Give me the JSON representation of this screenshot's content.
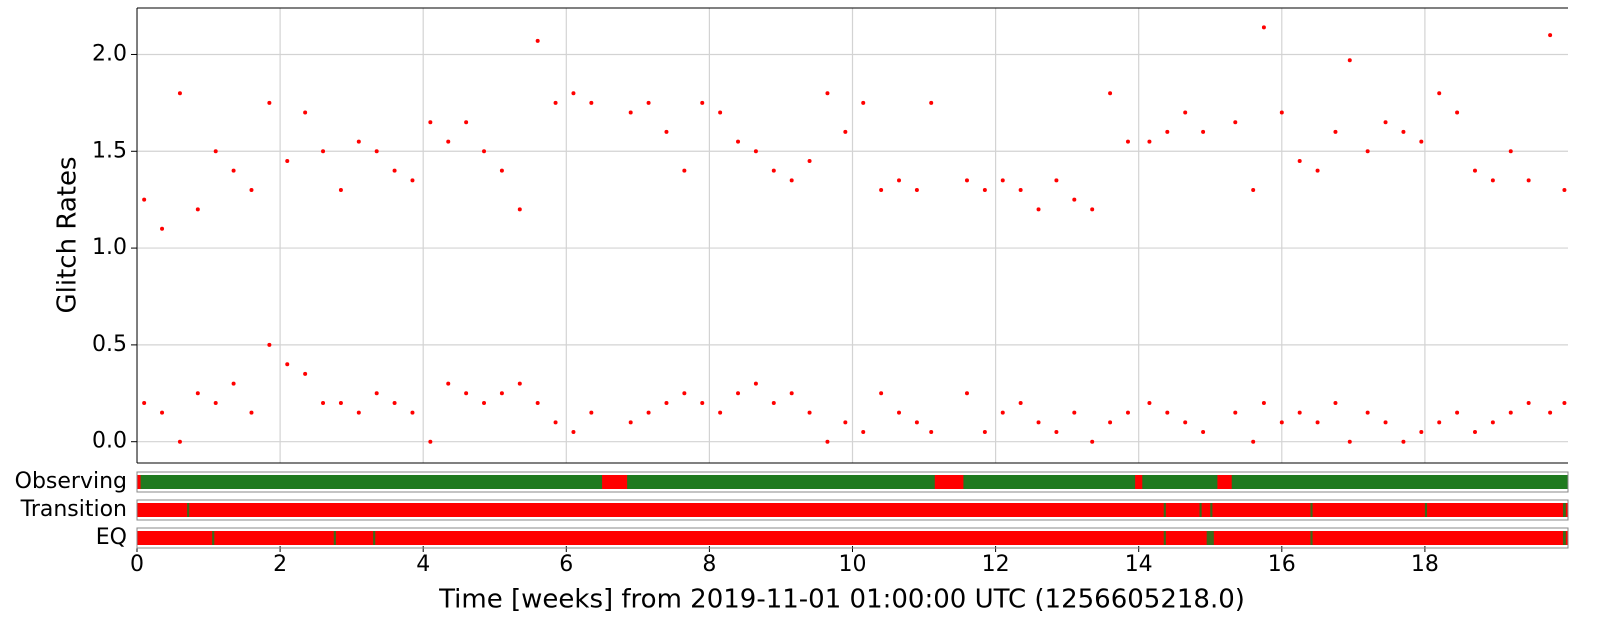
{
  "chart_data": {
    "type": "scatter",
    "ylabel": "Glitch Rates",
    "xlabel": "Time [weeks] from 2019-11-01 01:00:00 UTC (1256605218.0)",
    "color": "#ff0000",
    "grid": true,
    "xlim": [
      0,
      20
    ],
    "ylim": [
      -0.11,
      2.24
    ],
    "xticks": [
      0,
      2,
      4,
      6,
      8,
      10,
      12,
      14,
      16,
      18
    ],
    "yticks": [
      {
        "value": 0,
        "label": "0.0"
      },
      {
        "value": 0.5,
        "label": "0.5"
      },
      {
        "value": 1,
        "label": "1.0"
      },
      {
        "value": 1.5,
        "label": "1.5"
      },
      {
        "value": 2,
        "label": "2.0"
      }
    ],
    "x": [
      0.1,
      0.1,
      0.35,
      0.35,
      0.6,
      0.6,
      0.85,
      0.85,
      1.1,
      1.1,
      1.35,
      1.35,
      1.6,
      1.6,
      1.85,
      1.85,
      2.1,
      2.1,
      2.35,
      2.35,
      2.6,
      2.6,
      2.85,
      2.85,
      3.1,
      3.1,
      3.35,
      3.35,
      3.6,
      3.6,
      3.85,
      3.85,
      4.1,
      4.1,
      4.35,
      4.35,
      4.6,
      4.6,
      4.85,
      4.85,
      5.1,
      5.1,
      5.35,
      5.35,
      5.6,
      5.6,
      5.85,
      5.85,
      6.1,
      6.1,
      6.35,
      6.35,
      6.9,
      6.9,
      7.15,
      7.15,
      7.4,
      7.4,
      7.65,
      7.65,
      7.9,
      7.9,
      8.15,
      8.15,
      8.4,
      8.4,
      8.65,
      8.65,
      8.9,
      8.9,
      9.15,
      9.15,
      9.4,
      9.4,
      9.65,
      9.65,
      9.9,
      9.9,
      10.15,
      10.15,
      10.4,
      10.4,
      10.65,
      10.65,
      10.9,
      10.9,
      11.1,
      11.1,
      11.6,
      11.6,
      11.85,
      11.85,
      12.1,
      12.1,
      12.35,
      12.35,
      12.6,
      12.6,
      12.85,
      12.85,
      13.1,
      13.1,
      13.35,
      13.35,
      13.6,
      13.6,
      13.85,
      13.85,
      14.15,
      14.15,
      14.4,
      14.4,
      14.65,
      14.65,
      14.9,
      14.9,
      15.35,
      15.35,
      15.6,
      15.6,
      15.75,
      15.75,
      16.0,
      16.0,
      16.25,
      16.25,
      16.5,
      16.5,
      16.75,
      16.75,
      16.95,
      16.95,
      17.2,
      17.2,
      17.45,
      17.45,
      17.7,
      17.7,
      17.95,
      17.95,
      18.2,
      18.2,
      18.45,
      18.45,
      18.7,
      18.7,
      18.95,
      18.95,
      19.2,
      19.2,
      19.45,
      19.45,
      19.75,
      19.75,
      19.95,
      19.95
    ],
    "values": [
      0.2,
      1.25,
      0.15,
      1.1,
      0.0,
      1.8,
      0.25,
      1.2,
      0.2,
      1.5,
      0.3,
      1.4,
      0.15,
      1.3,
      0.5,
      1.75,
      0.4,
      1.45,
      0.35,
      1.7,
      0.2,
      1.5,
      0.2,
      1.3,
      0.15,
      1.55,
      0.25,
      1.5,
      0.2,
      1.4,
      0.15,
      1.35,
      0.0,
      1.65,
      0.3,
      1.55,
      0.25,
      1.65,
      0.2,
      1.5,
      0.25,
      1.4,
      0.3,
      1.2,
      0.2,
      2.07,
      0.1,
      1.75,
      0.05,
      1.8,
      0.15,
      1.75,
      0.1,
      1.7,
      0.15,
      1.75,
      0.2,
      1.6,
      0.25,
      1.4,
      0.2,
      1.75,
      0.15,
      1.7,
      0.25,
      1.55,
      0.3,
      1.5,
      0.2,
      1.4,
      0.25,
      1.35,
      0.15,
      1.45,
      0.0,
      1.8,
      0.1,
      1.6,
      0.05,
      1.75,
      0.25,
      1.3,
      0.15,
      1.35,
      0.1,
      1.3,
      0.05,
      1.75,
      0.25,
      1.35,
      0.05,
      1.3,
      0.15,
      1.35,
      0.2,
      1.3,
      0.1,
      1.2,
      0.05,
      1.35,
      0.15,
      1.25,
      0.0,
      1.2,
      0.1,
      1.8,
      0.15,
      1.55,
      0.2,
      1.55,
      0.15,
      1.6,
      0.1,
      1.7,
      0.05,
      1.6,
      0.15,
      1.65,
      0.0,
      1.3,
      0.2,
      2.14,
      0.1,
      1.7,
      0.15,
      1.45,
      0.1,
      1.4,
      0.2,
      1.6,
      0.0,
      1.97,
      0.15,
      1.5,
      0.1,
      1.65,
      0.0,
      1.6,
      0.05,
      1.55,
      0.1,
      1.8,
      0.15,
      1.7,
      0.05,
      1.4,
      0.1,
      1.35,
      0.15,
      1.5,
      0.2,
      1.35,
      0.15,
      2.1,
      0.2,
      1.3
    ],
    "segments": [
      {
        "name": "Observing",
        "active_color": "#1f7a1f",
        "inactive_color": "#ff0000",
        "active": [
          [
            0.05,
            6.5
          ],
          [
            6.85,
            11.15
          ],
          [
            11.55,
            13.95
          ],
          [
            14.05,
            15.1
          ],
          [
            15.3,
            20
          ]
        ]
      },
      {
        "name": "Transition",
        "active_color": "#3a6b1a",
        "inactive_color": "#ff0000",
        "active": [
          [
            0.7,
            0.73
          ],
          [
            14.35,
            14.38
          ],
          [
            14.85,
            14.88
          ],
          [
            15.0,
            15.03
          ],
          [
            16.4,
            16.43
          ],
          [
            18.0,
            18.03
          ],
          [
            19.93,
            19.97
          ]
        ]
      },
      {
        "name": "EQ",
        "active_color": "#3a6b1a",
        "inactive_color": "#ff0000",
        "active": [
          [
            1.05,
            1.08
          ],
          [
            2.75,
            2.78
          ],
          [
            3.3,
            3.33
          ],
          [
            14.35,
            14.38
          ],
          [
            14.95,
            15.05
          ],
          [
            16.4,
            16.43
          ],
          [
            19.93,
            19.97
          ]
        ]
      }
    ]
  }
}
